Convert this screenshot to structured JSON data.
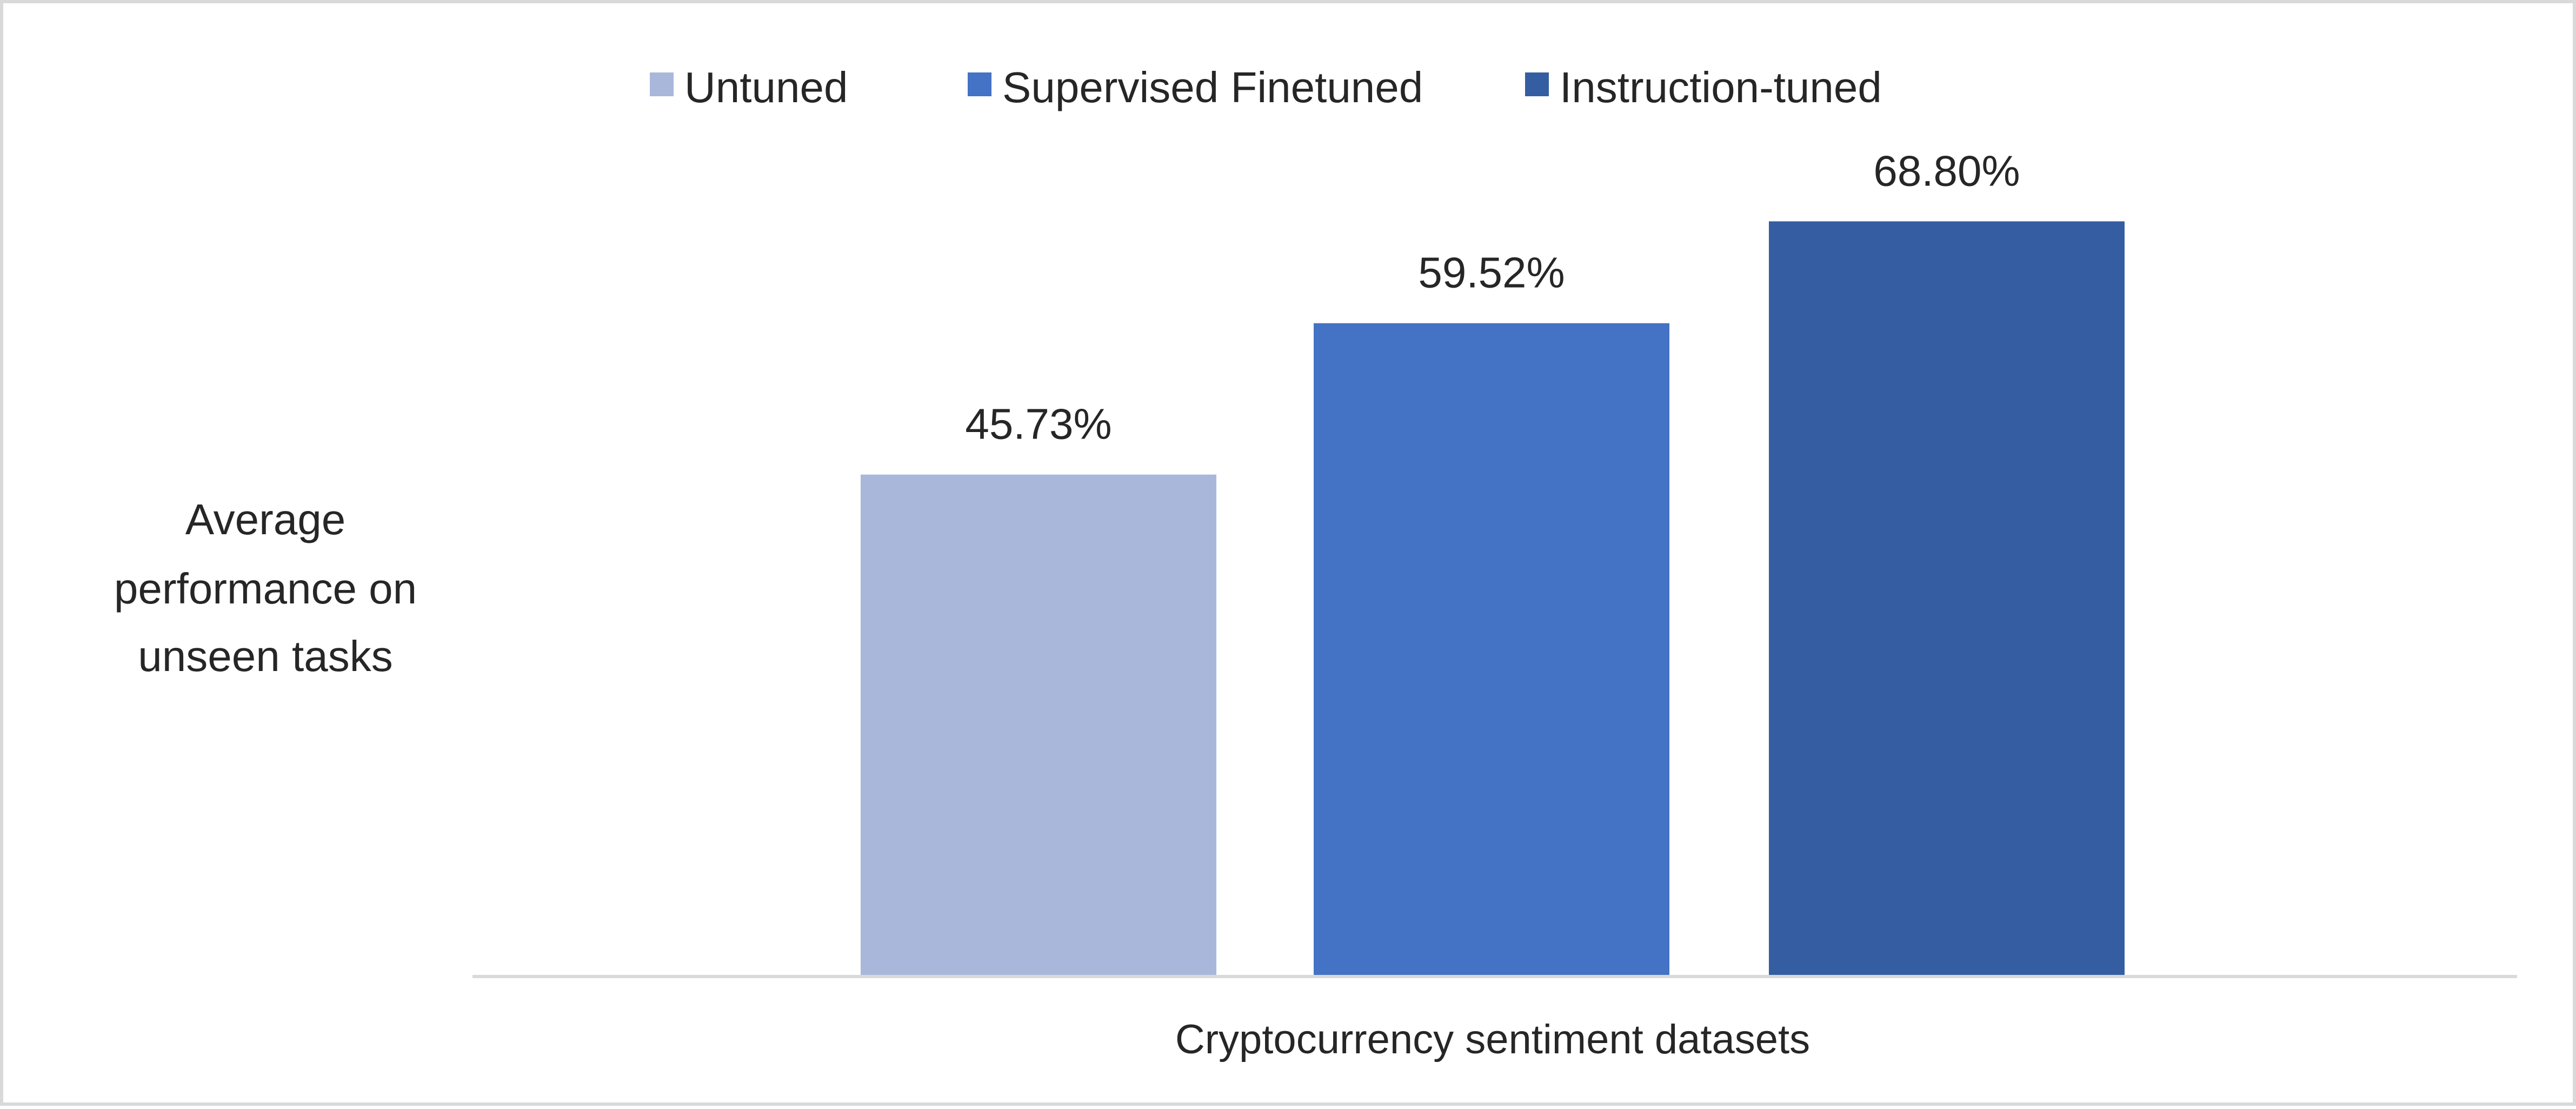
{
  "chart_data": {
    "type": "bar",
    "categories": [
      "Cryptocurrency sentiment datasets"
    ],
    "series": [
      {
        "name": "Untuned",
        "values": [
          45.73
        ],
        "label": "45.73%",
        "color": "#a9b7db"
      },
      {
        "name": "Supervised Finetuned",
        "values": [
          59.52
        ],
        "label": "59.52%",
        "color": "#4472c4"
      },
      {
        "name": "Instruction-tuned",
        "values": [
          68.8
        ],
        "label": "68.80%",
        "color": "#355ea2"
      }
    ],
    "title": "",
    "xlabel": "Cryptocurrency sentiment datasets",
    "ylabel": "Average performance on unseen tasks",
    "ylabel_lines": [
      "Average",
      "performance on",
      "unseen tasks"
    ],
    "ylim": [
      0,
      100
    ],
    "unit": "%",
    "legend_position": "top-center",
    "grid": false,
    "axis_line_color": "#d9d9d9"
  }
}
